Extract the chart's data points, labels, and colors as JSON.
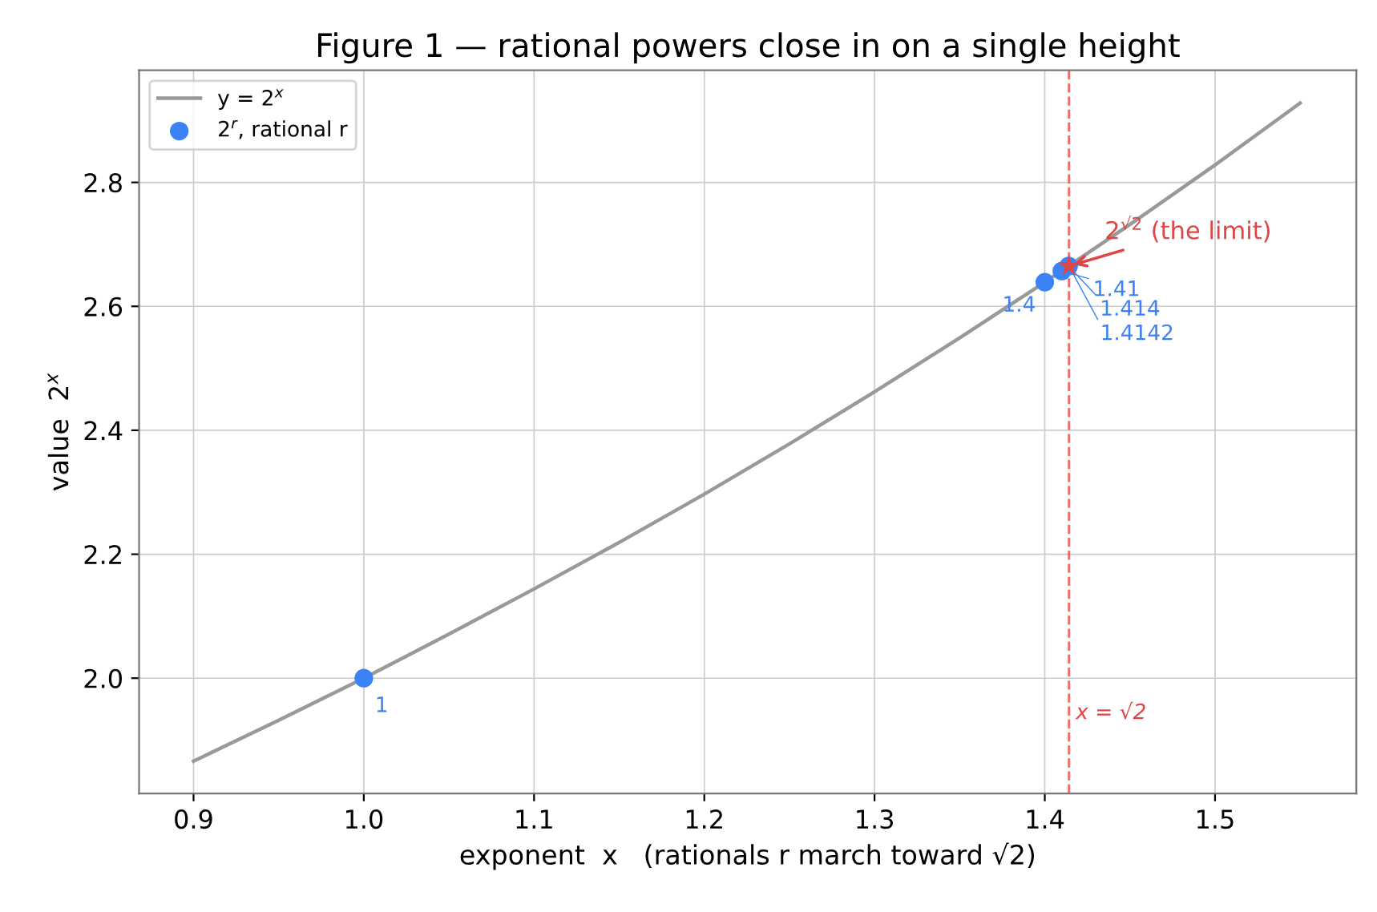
{
  "chart_data": {
    "type": "line",
    "title": "Figure 1 — rational powers close in on a single height",
    "xlabel": "exponent  x   (rationals r march toward √2)",
    "ylabel": "value  2$^{x}$",
    "xlim": [
      0.868,
      1.583
    ],
    "xticks": [
      0.9,
      {
        "value": 1,
        "label": "1.0"
      },
      1.1,
      1.2,
      1.3,
      1.4,
      1.5
    ],
    "ylim": [
      1.814,
      2.981
    ],
    "yticks": [
      {
        "value": 2,
        "label": "2.0"
      },
      2.2,
      2.4,
      2.6,
      2.8
    ],
    "grid": true,
    "legend": "top left",
    "series": [
      {
        "name": "y = 2$^{x}$",
        "color": "#999999",
        "marker": "none",
        "line_style": "solid",
        "x": [
          0.9,
          0.95,
          1.0,
          1.05,
          1.1,
          1.15,
          1.2,
          1.25,
          1.3,
          1.35,
          1.4,
          1.45,
          1.5,
          1.55
        ],
        "values": [
          1.866,
          1.932,
          2.0,
          2.071,
          2.144,
          2.219,
          2.297,
          2.378,
          2.462,
          2.549,
          2.639,
          2.732,
          2.828,
          2.928
        ]
      },
      {
        "name": "2$^{r}$, rational r",
        "type": "scatter",
        "color": "#3b82f6",
        "marker": "circle",
        "x": [
          1.0,
          1.4,
          1.41,
          1.414
        ],
        "values": [
          2.0,
          2.639,
          2.657,
          2.665
        ]
      },
      {
        "type": "scatter",
        "color": "#e04444",
        "marker": "star",
        "x": [
          1.41421
        ],
        "values": [
          2.665
        ]
      }
    ],
    "ref_lines": [
      {
        "axis": "x",
        "value": 1.41421,
        "label": "x = √2",
        "color": "#e04444",
        "line_style": "dashed"
      }
    ],
    "annotations": [
      {
        "text": "2$^{√2}$ (the limit)",
        "x": 1.41421,
        "y": 2.665
      },
      {
        "text": "1",
        "x": 1.0,
        "y": 2.0
      },
      {
        "text": "1.4",
        "x": 1.4,
        "y": 2.639
      },
      {
        "text": "1.41",
        "x": 1.41,
        "y": 2.657
      },
      {
        "text": "1.414",
        "x": 1.414,
        "y": 2.665
      },
      {
        "text": "1.4142",
        "x": 1.4142,
        "y": 2.665
      }
    ]
  }
}
